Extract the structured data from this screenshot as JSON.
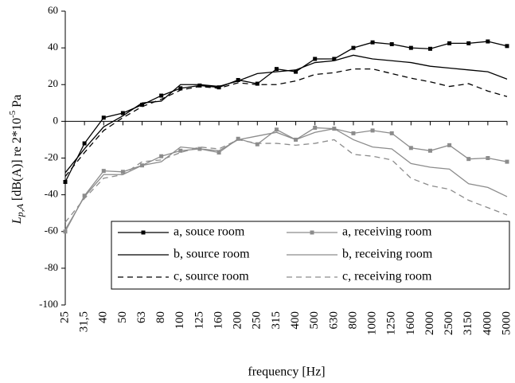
{
  "chart_data": {
    "type": "line",
    "ylabel_parts": [
      "L",
      "p,A",
      " [dB(A)] re 2*10",
      "-5",
      " Pa"
    ],
    "xlabel": "frequency [Hz]",
    "categories": [
      "25",
      "31,5",
      "40",
      "50",
      "63",
      "80",
      "100",
      "125",
      "160",
      "200",
      "250",
      "315",
      "400",
      "500",
      "630",
      "800",
      "1000",
      "1250",
      "1600",
      "2000",
      "2500",
      "3150",
      "4000",
      "5000"
    ],
    "ylim": [
      -100,
      60
    ],
    "yticks": [
      -100,
      -80,
      -60,
      -40,
      -20,
      0,
      20,
      40,
      60
    ],
    "grid": false,
    "legend": "bottom",
    "series": [
      {
        "name": "a, souce room",
        "color": "#000000",
        "dash": false,
        "marker": "square",
        "values": [
          -33,
          -12,
          2,
          4.5,
          9,
          14,
          18,
          19.5,
          18.5,
          22.5,
          20.5,
          28.5,
          27,
          34,
          34,
          40,
          43,
          42,
          40,
          39.5,
          42.5,
          42.5,
          43.5,
          41
        ]
      },
      {
        "name": "b, source room",
        "color": "#000000",
        "dash": false,
        "marker": "none",
        "values": [
          -28,
          -15,
          -3,
          3,
          10,
          11,
          20,
          20,
          19,
          22,
          26,
          27,
          28,
          32,
          33,
          36,
          34,
          33,
          32,
          30,
          29,
          28,
          27,
          23
        ]
      },
      {
        "name": "c, source room",
        "color": "#000000",
        "dash": true,
        "marker": "none",
        "values": [
          -30,
          -17,
          -5,
          2,
          8,
          12,
          17,
          19,
          18,
          21,
          20,
          20,
          22,
          25.5,
          26.5,
          28.5,
          28.5,
          26,
          23.5,
          21.5,
          19,
          20.5,
          16.5,
          13.5
        ]
      },
      {
        "name": "a, receiving room",
        "color": "#8c8c8c",
        "dash": false,
        "marker": "square",
        "values": [
          -60,
          -40.5,
          -27,
          -27.5,
          -24,
          -19,
          -16,
          -15,
          -17,
          -9.5,
          -12.5,
          -4.5,
          -10,
          -3.5,
          -4,
          -6.5,
          -5,
          -6.5,
          -14.5,
          -16,
          -13,
          -20.5,
          -20,
          -22
        ]
      },
      {
        "name": "b, receiving room",
        "color": "#8c8c8c",
        "dash": false,
        "marker": "none",
        "values": [
          -59,
          -41,
          -29,
          -29,
          -24,
          -22,
          -14,
          -15,
          -16,
          -10,
          -8,
          -6,
          -10,
          -6,
          -4,
          -10,
          -14,
          -15,
          -23,
          -25,
          -26,
          -34,
          -36,
          -41
        ]
      },
      {
        "name": "c, receiving room",
        "color": "#8c8c8c",
        "dash": true,
        "marker": "none",
        "values": [
          -55,
          -42,
          -31,
          -29,
          -22,
          -21,
          -17,
          -14,
          -15,
          -10,
          -12,
          -12,
          -13,
          -12,
          -10,
          -18,
          -19,
          -21,
          -31,
          -35,
          -37,
          -43,
          -47,
          -51
        ]
      }
    ]
  }
}
